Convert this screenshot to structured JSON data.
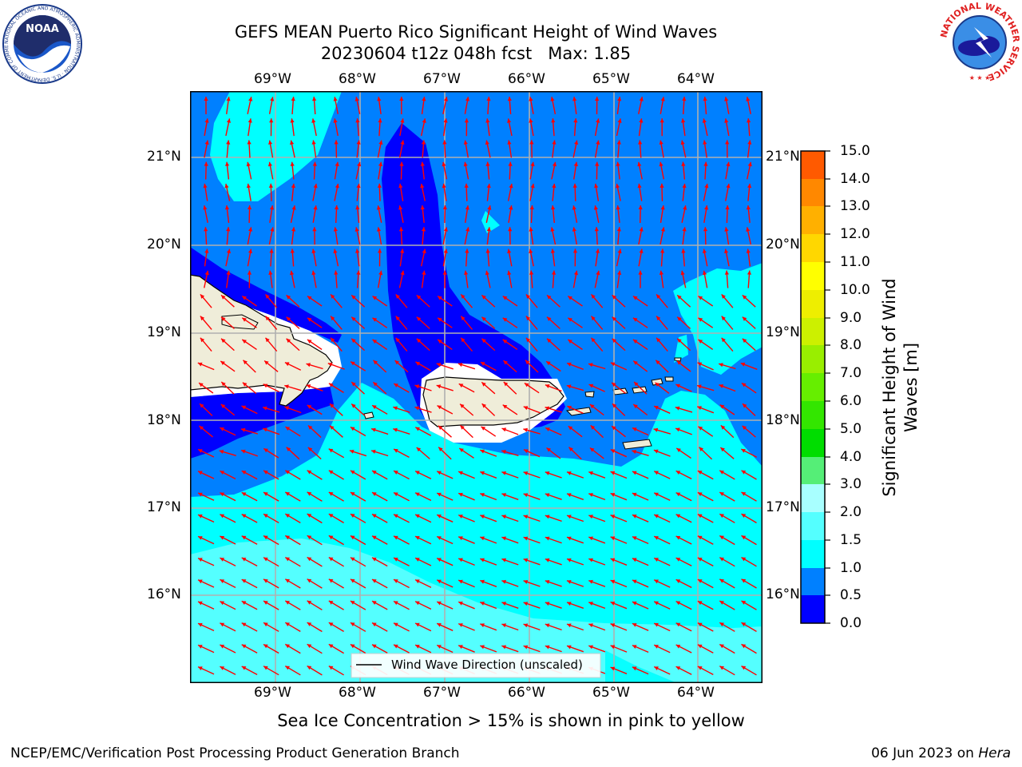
{
  "header": {
    "title_line1": "GEFS MEAN Puerto Rico Significant Height of Wind Waves",
    "title_line2": "20230604 t12z 048h fcst   Max: 1.85",
    "left_logo": {
      "text": "NOAA",
      "ring_text": "NATIONAL OCEANIC AND ATMOSPHERIC ADMINISTRATION · U.S. DEPARTMENT OF COMMERCE"
    },
    "right_logo": {
      "ring_text": "NATIONAL WEATHER SERVICE"
    }
  },
  "map": {
    "lon_labels": [
      "69°W",
      "68°W",
      "67°W",
      "66°W",
      "65°W",
      "64°W"
    ],
    "lat_labels": [
      "21°N",
      "20°N",
      "19°N",
      "18°N",
      "17°N",
      "16°N"
    ],
    "legend_label": "Wind Wave Direction (unscaled)",
    "fill_colors": {
      "0.0-0.5": "#0000ff",
      "0.5-1.0": "#0080ff",
      "1.0-1.5": "#00ffff",
      "1.5-2.0": "#54ffff",
      "land": "#efedd9",
      "arrow": "#ff0000",
      "grid": "#b0b0b0"
    }
  },
  "colorbar": {
    "label_line1": "Significant Height of Wind",
    "label_line2": "Waves [m]",
    "ticks": [
      "15.0",
      "14.0",
      "13.0",
      "12.0",
      "11.0",
      "10.0",
      "9.0",
      "8.0",
      "7.0",
      "6.0",
      "5.0",
      "4.0",
      "3.0",
      "2.0",
      "1.5",
      "1.0",
      "0.5",
      "0.0"
    ],
    "colors_bottom_to_top": [
      "#0000ff",
      "#0080ff",
      "#00ffff",
      "#54ffff",
      "#a8ffff",
      "#55ee77",
      "#00dd00",
      "#33e600",
      "#66ee00",
      "#99ee00",
      "#ccf000",
      "#eeee00",
      "#ffff00",
      "#ffd700",
      "#ffb000",
      "#ff8800",
      "#ff5a00",
      "#ff3000",
      "#ff0000"
    ]
  },
  "footer": {
    "note": "Sea Ice Concentration > 15% is shown in pink to yellow",
    "credit": "NCEP/EMC/Verification Post Processing Product Generation Branch",
    "date": "06 Jun 2023 on ",
    "host": "Hera"
  }
}
